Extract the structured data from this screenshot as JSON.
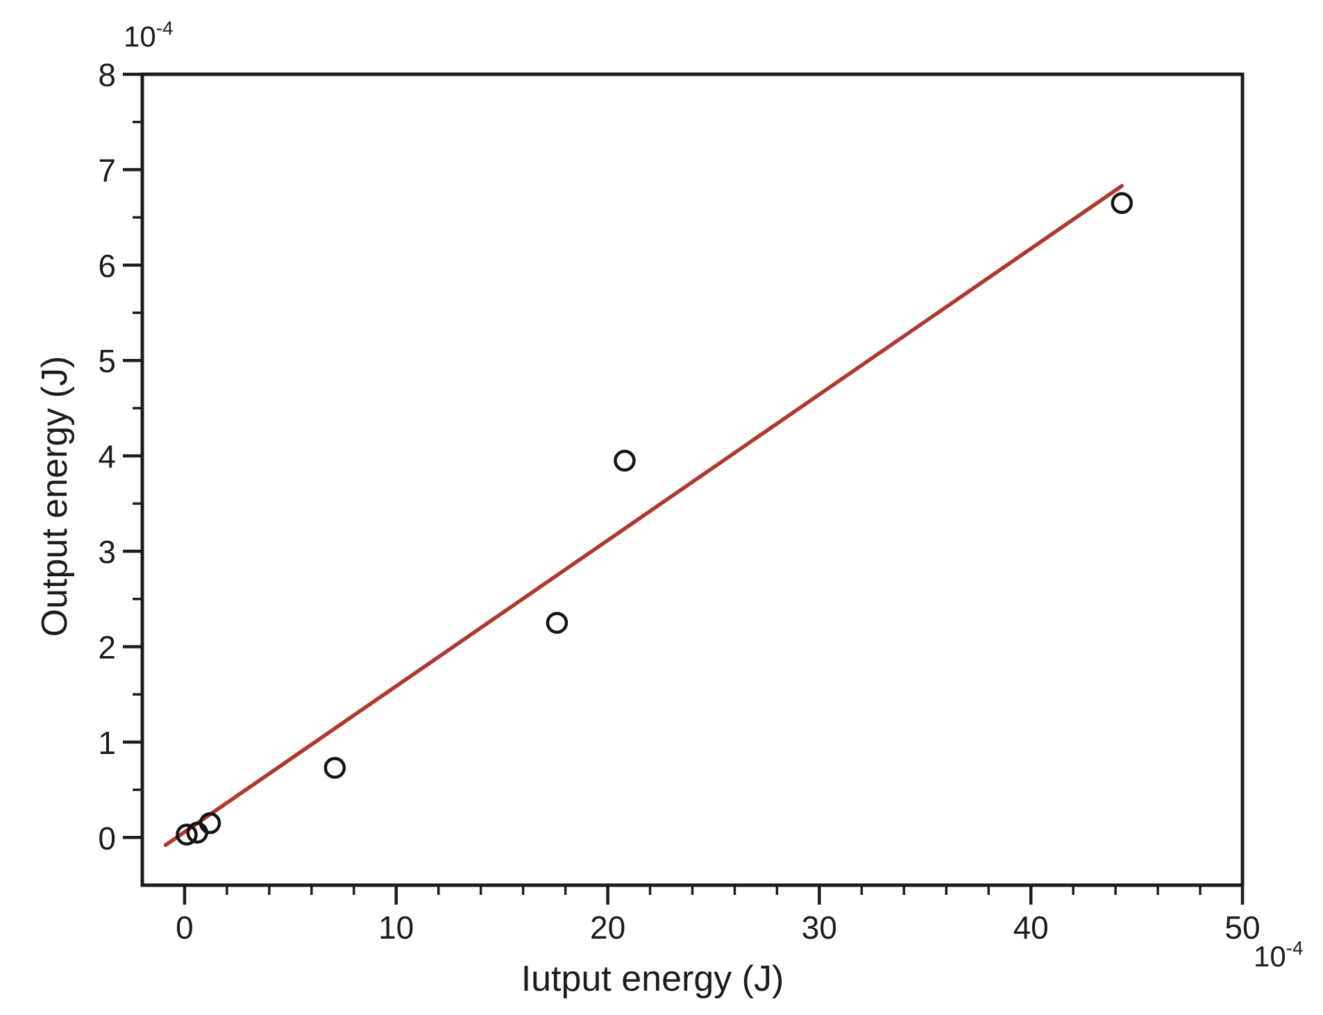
{
  "figure": {
    "background": "#ffffff"
  },
  "chart_data": {
    "type": "scatter",
    "title": "",
    "xlabel": "Iutput energy (J)",
    "ylabel": "Output energy (J)",
    "x_scale_label": {
      "base": "10",
      "exp": "-4"
    },
    "y_scale_label": {
      "base": "10",
      "exp": "-4"
    },
    "xlim": [
      -2,
      50
    ],
    "ylim": [
      -0.5,
      8
    ],
    "x_ticks": [
      0,
      10,
      20,
      30,
      40,
      50
    ],
    "y_ticks": [
      0,
      1,
      2,
      3,
      4,
      5,
      6,
      7,
      8
    ],
    "x_minor_step": 2,
    "y_minor_step": 0.5,
    "grid": false,
    "legend": "none",
    "axis_color": "#1c1c1c",
    "points": [
      {
        "x": 0.1,
        "y": 0.03
      },
      {
        "x": 0.6,
        "y": 0.05
      },
      {
        "x": 1.2,
        "y": 0.15
      },
      {
        "x": 7.1,
        "y": 0.73
      },
      {
        "x": 17.6,
        "y": 2.25
      },
      {
        "x": 20.8,
        "y": 3.95
      },
      {
        "x": 44.3,
        "y": 6.65
      }
    ],
    "marker_color": "#141414",
    "fit_line": {
      "x1": -0.9,
      "y1": -0.08,
      "x2": 44.3,
      "y2": 6.83,
      "color": "#ad392f"
    }
  }
}
